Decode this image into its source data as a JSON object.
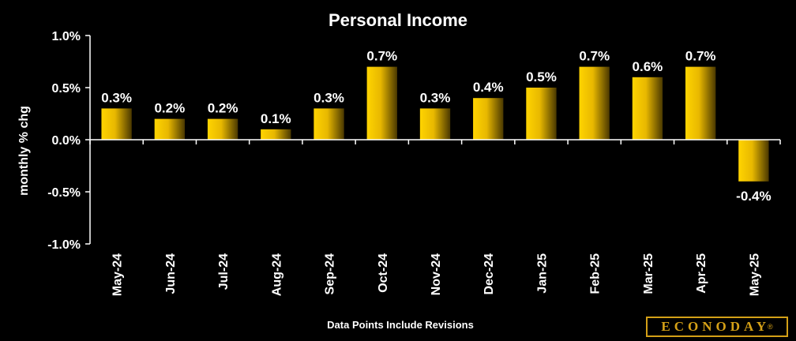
{
  "chart_data": {
    "type": "bar",
    "title": "Personal Income",
    "ylabel": "monthly % chg",
    "xlabel": "",
    "footnote": "Data Points Include Revisions",
    "categories": [
      "May-24",
      "Jun-24",
      "Jul-24",
      "Aug-24",
      "Sep-24",
      "Oct-24",
      "Nov-24",
      "Dec-24",
      "Jan-25",
      "Feb-25",
      "Mar-25",
      "Apr-25",
      "May-25"
    ],
    "values": [
      0.3,
      0.2,
      0.2,
      0.1,
      0.3,
      0.7,
      0.3,
      0.4,
      0.5,
      0.7,
      0.6,
      0.7,
      -0.4
    ],
    "data_labels": [
      "0.3%",
      "0.2%",
      "0.2%",
      "0.1%",
      "0.3%",
      "0.7%",
      "0.3%",
      "0.4%",
      "0.5%",
      "0.7%",
      "0.6%",
      "0.7%",
      "-0.4%"
    ],
    "ylim": [
      -1.0,
      1.0
    ],
    "yticks": [
      1.0,
      0.5,
      0.0,
      -0.5,
      -1.0
    ],
    "ytick_labels": [
      "1.0%",
      "0.5%",
      "0.0%",
      "-0.5%",
      "-1.0%"
    ],
    "grid": false,
    "legend": "none",
    "colors": {
      "bar": "#f5c400",
      "bar_dark": "#5a4500",
      "background": "#000000",
      "axis": "#ffffff"
    }
  },
  "brand": {
    "name": "ECONODAY",
    "mark": "®"
  }
}
